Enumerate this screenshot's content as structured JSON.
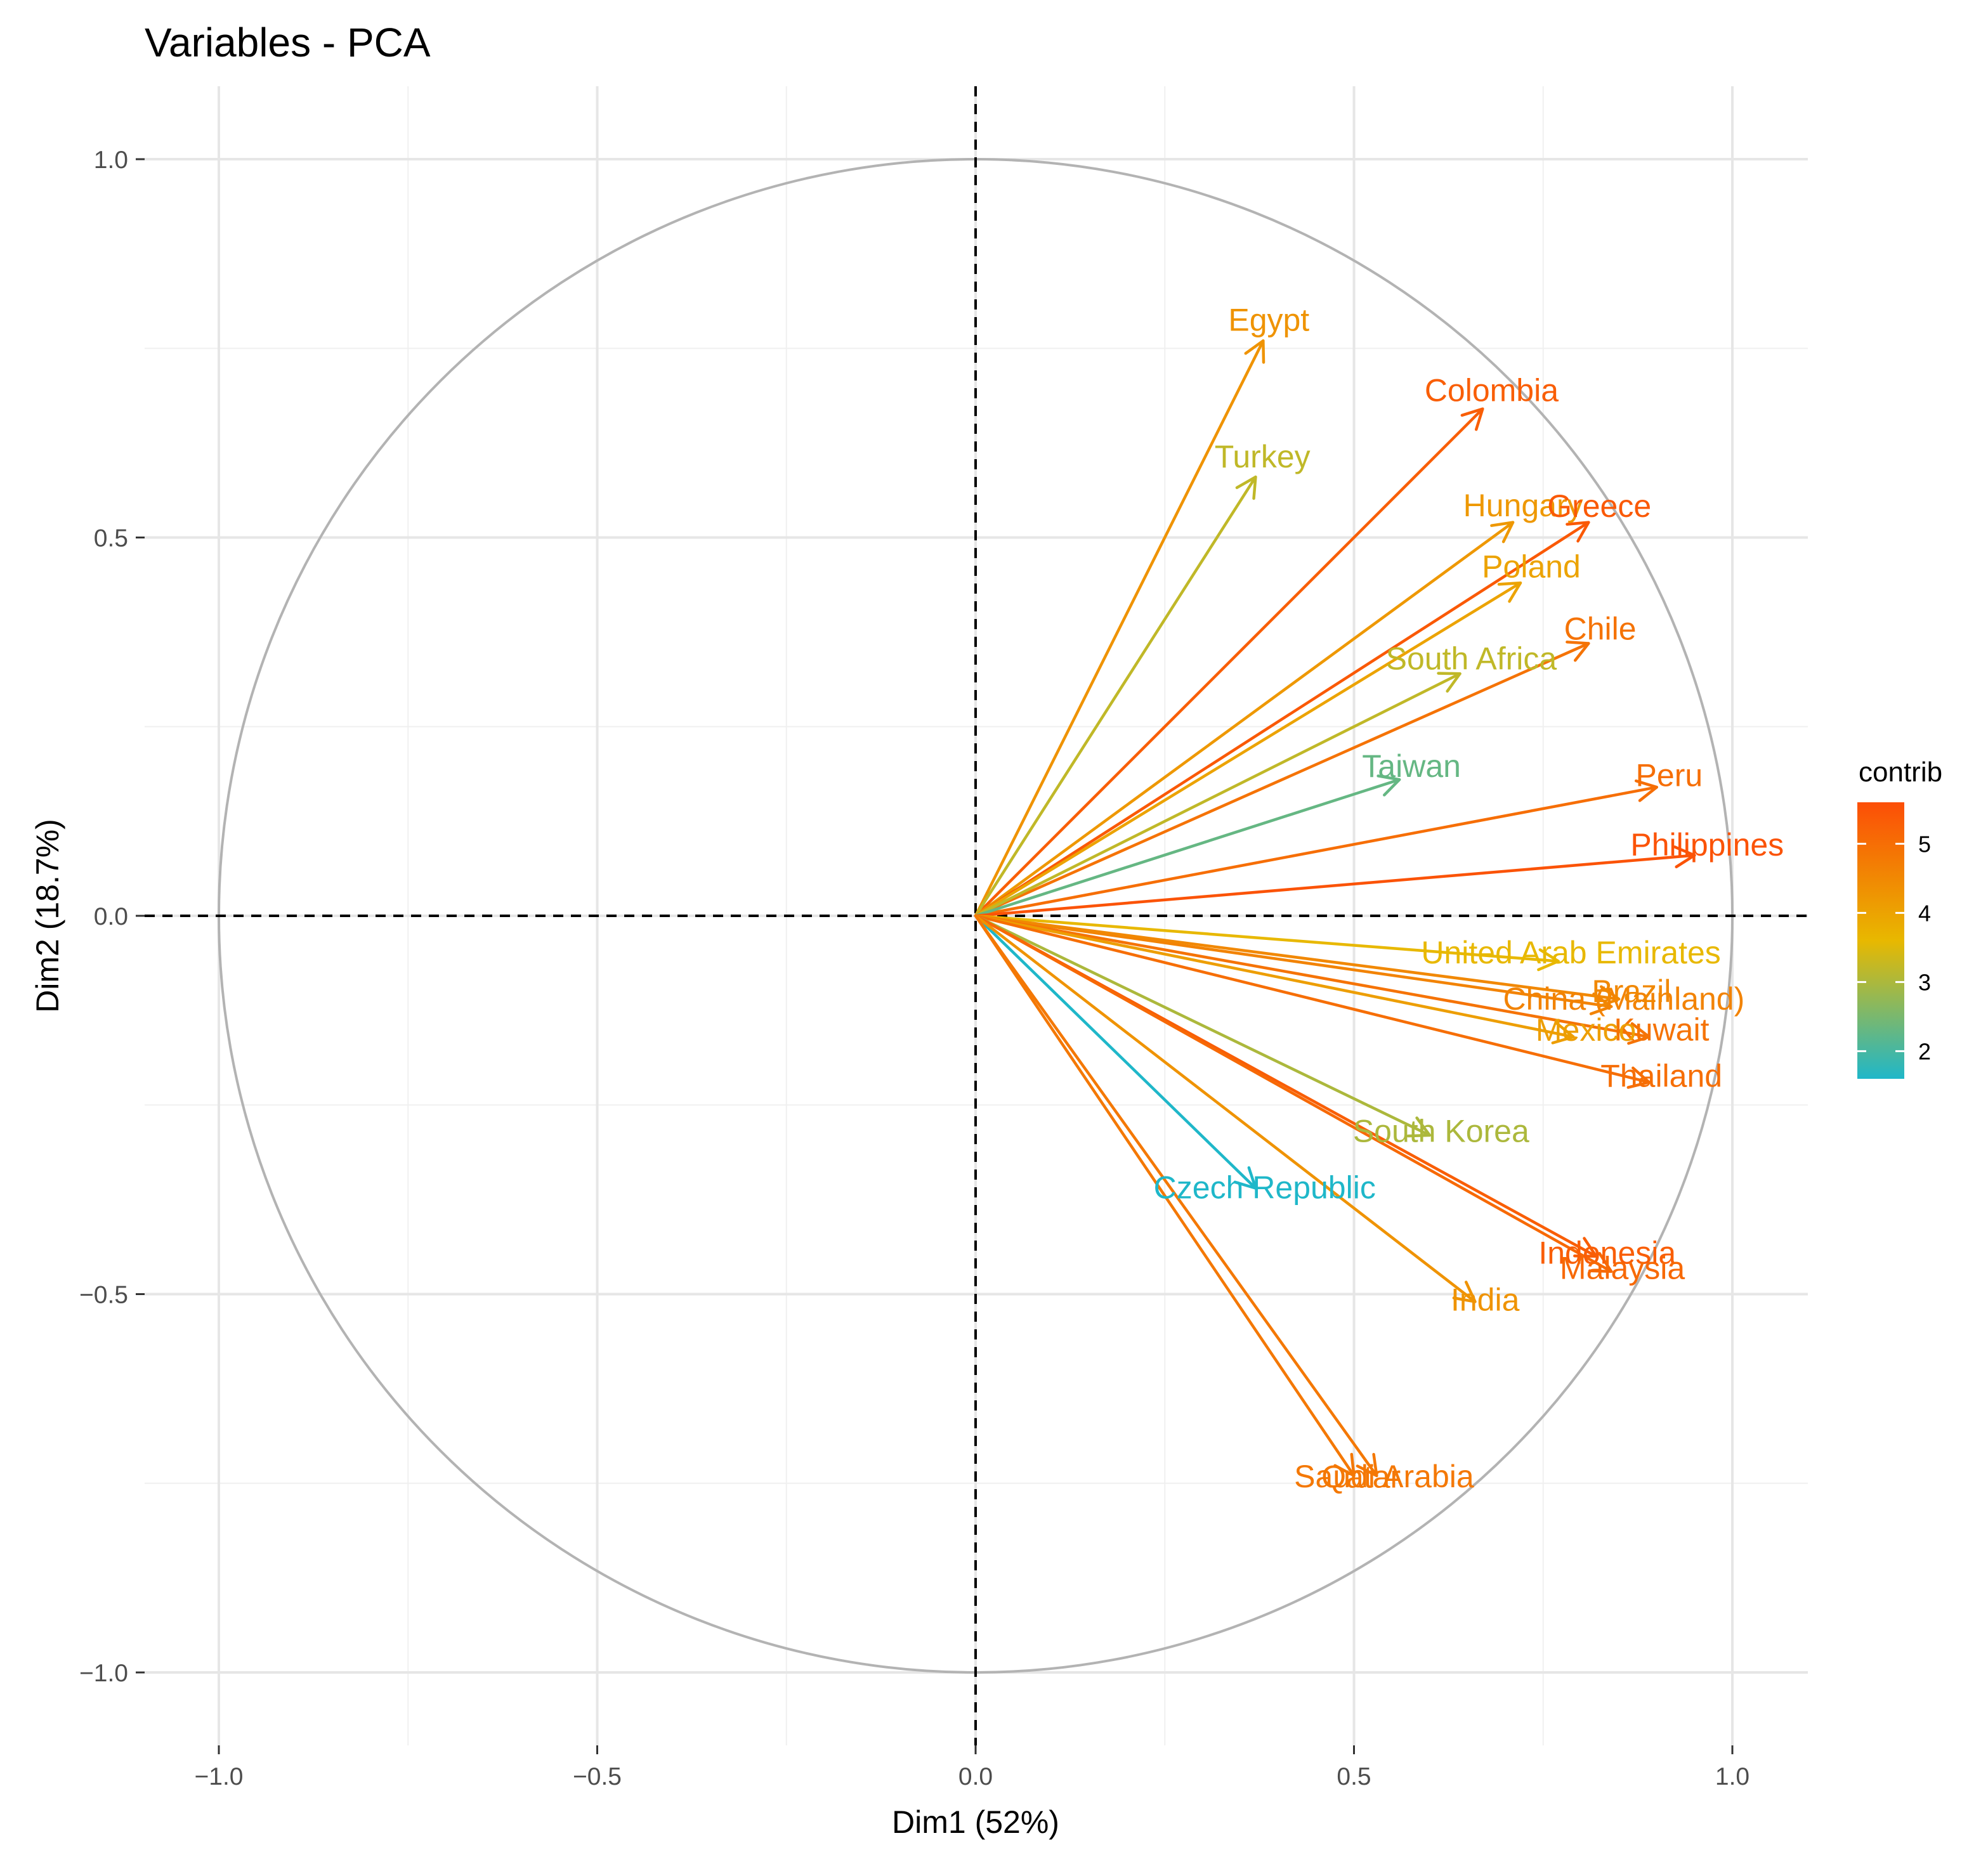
{
  "chart_data": {
    "type": "pca_variable_correlation_circle",
    "title": "Variables - PCA",
    "xlabel": "Dim1 (52%)",
    "ylabel": "Dim2 (18.7%)",
    "xlim": [
      -1.1,
      1.1
    ],
    "ylim": [
      -1.1,
      1.1
    ],
    "x_ticks": [
      -1.0,
      -0.5,
      0.0,
      0.5,
      1.0
    ],
    "x_tick_labels": [
      "−1.0",
      "−0.5",
      "0.0",
      "0.5",
      "1.0"
    ],
    "y_ticks": [
      -1.0,
      -0.5,
      0.0,
      0.5,
      1.0
    ],
    "y_tick_labels": [
      "−1.0",
      "−0.5",
      "0.0",
      "0.5",
      "1.0"
    ],
    "grid": true,
    "legend": {
      "title": "contrib",
      "placement": "right",
      "min": 1.6,
      "max": 5.6,
      "ticks": [
        2,
        3,
        4,
        5
      ],
      "tick_labels": [
        "2",
        "3",
        "4",
        "5"
      ],
      "gradient": [
        "#1fb7c9",
        "#e8b800",
        "#fc4e07"
      ]
    },
    "series": [
      {
        "name": "Egypt",
        "x": 0.38,
        "y": 0.76,
        "contrib": 4.3
      },
      {
        "name": "Colombia",
        "x": 0.67,
        "y": 0.67,
        "contrib": 5.3
      },
      {
        "name": "Turkey",
        "x": 0.37,
        "y": 0.58,
        "contrib": 3.2
      },
      {
        "name": "Hungary",
        "x": 0.71,
        "y": 0.52,
        "contrib": 4.2
      },
      {
        "name": "Greece",
        "x": 0.81,
        "y": 0.52,
        "contrib": 5.4
      },
      {
        "name": "Poland",
        "x": 0.72,
        "y": 0.44,
        "contrib": 4.0
      },
      {
        "name": "Chile",
        "x": 0.81,
        "y": 0.36,
        "contrib": 4.9
      },
      {
        "name": "South Africa",
        "x": 0.64,
        "y": 0.32,
        "contrib": 3.2
      },
      {
        "name": "Peru",
        "x": 0.9,
        "y": 0.17,
        "contrib": 5.0
      },
      {
        "name": "Taiwan",
        "x": 0.56,
        "y": 0.18,
        "contrib": 2.3
      },
      {
        "name": "Philippines",
        "x": 0.95,
        "y": 0.08,
        "contrib": 5.5
      },
      {
        "name": "United Arab Emirates",
        "x": 0.77,
        "y": -0.06,
        "contrib": 3.6
      },
      {
        "name": "China (Mainland)",
        "x": 0.84,
        "y": -0.12,
        "contrib": 4.6
      },
      {
        "name": "Brazil",
        "x": 0.85,
        "y": -0.11,
        "contrib": 4.5
      },
      {
        "name": "Kuwait",
        "x": 0.89,
        "y": -0.16,
        "contrib": 4.9
      },
      {
        "name": "Mexico",
        "x": 0.79,
        "y": -0.16,
        "contrib": 4.1
      },
      {
        "name": "Thailand",
        "x": 0.89,
        "y": -0.22,
        "contrib": 5.0
      },
      {
        "name": "South Korea",
        "x": 0.6,
        "y": -0.29,
        "contrib": 3.0
      },
      {
        "name": "Czech Republic",
        "x": 0.37,
        "y": -0.36,
        "contrib": 1.6
      },
      {
        "name": "Indonesia",
        "x": 0.82,
        "y": -0.45,
        "contrib": 5.3
      },
      {
        "name": "Malaysia",
        "x": 0.84,
        "y": -0.47,
        "contrib": 5.1
      },
      {
        "name": "India",
        "x": 0.66,
        "y": -0.51,
        "contrib": 4.3
      },
      {
        "name": "Qatar",
        "x": 0.5,
        "y": -0.74,
        "contrib": 4.8
      },
      {
        "name": "Saudi Arabia",
        "x": 0.53,
        "y": -0.74,
        "contrib": 4.8
      }
    ]
  }
}
